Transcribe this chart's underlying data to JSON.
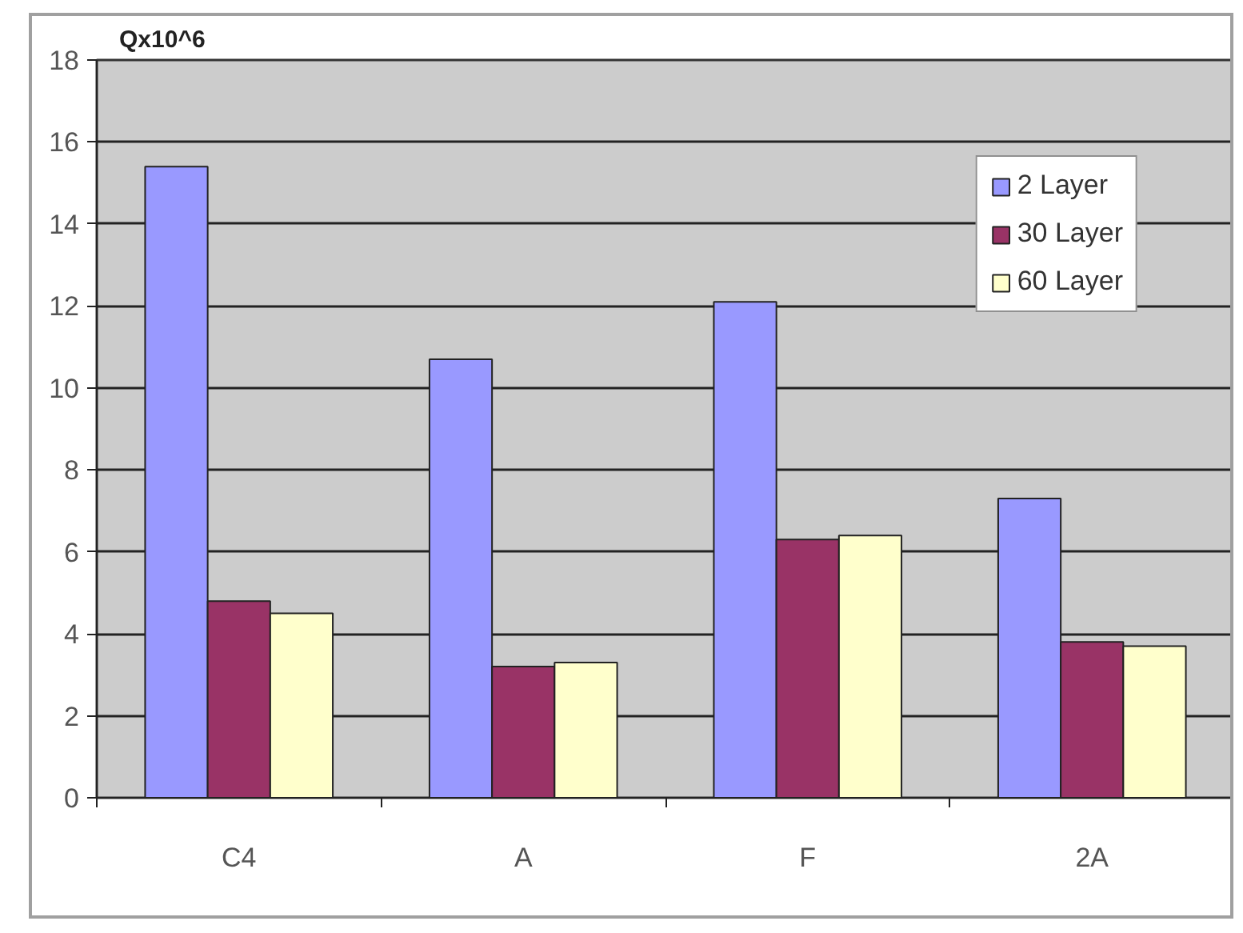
{
  "chart_data": {
    "type": "bar",
    "ylabel": "Qx10^6",
    "categories": [
      "C4",
      "A",
      "F",
      "2A"
    ],
    "series": [
      {
        "name": "2 Layer",
        "color": "#9999ff",
        "values": [
          15.4,
          10.7,
          12.1,
          7.3
        ]
      },
      {
        "name": "30 Layer",
        "color": "#993366",
        "values": [
          4.8,
          3.2,
          6.3,
          3.8
        ]
      },
      {
        "name": "60 Layer",
        "color": "#ffffcc",
        "values": [
          4.5,
          3.3,
          6.4,
          3.7
        ]
      }
    ],
    "ylim": [
      0,
      18
    ],
    "yticks": [
      0,
      2,
      4,
      6,
      8,
      10,
      12,
      14,
      16,
      18
    ],
    "grid": "y",
    "legend": "top right"
  }
}
